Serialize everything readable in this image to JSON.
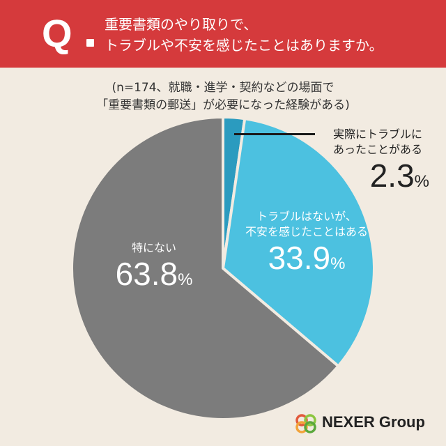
{
  "header": {
    "q_mark": "Q",
    "question_line1": "重要書類のやり取りで、",
    "question_line2": "トラブルや不安を感じたことはありますか。",
    "background_color": "#d53a3c"
  },
  "note": {
    "line1": "(n=174、就職・進学・契約などの場面で",
    "line2": "「重要書類の郵送」が必要になった経験がある)"
  },
  "chart_data": {
    "type": "pie",
    "start_angle_deg": 0,
    "direction": "clockwise",
    "slices": [
      {
        "label_line1": "実際にトラブルに",
        "label_line2": "あったことがある",
        "value": 2.3,
        "value_text": "2.3",
        "unit": "%",
        "color": "#2b9bbf"
      },
      {
        "label_line1": "トラブルはないが、",
        "label_line2": "不安を感じたことはある",
        "value": 33.9,
        "value_text": "33.9",
        "unit": "%",
        "color": "#4cc1e0"
      },
      {
        "label_line1": "特にない",
        "label_line2": "",
        "value": 63.8,
        "value_text": "63.8",
        "unit": "%",
        "color": "#7c7c7c"
      }
    ]
  },
  "logo": {
    "text": "NEXER Group"
  }
}
